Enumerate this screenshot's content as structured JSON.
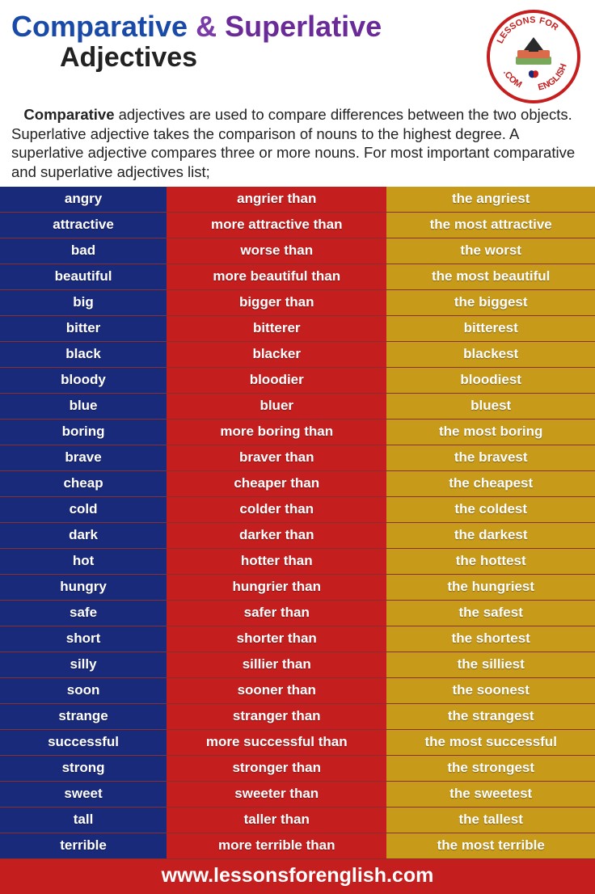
{
  "title": {
    "word1": "Comparative",
    "amp": "&",
    "word2": "Superlative",
    "word3": "Adjectives"
  },
  "logo": {
    "top_text": "LESSONS",
    "side_left": "FOR",
    "side_right": "ENGLISH",
    "bottom_text": ".COM"
  },
  "description": {
    "bold": "Comparative",
    "rest": " adjectives are used to compare differences between the two objects. Superlative adjective takes the comparison of nouns to the highest degree. A superlative adjective compares three or more nouns. For most important  comparative and superlative adjectives list;"
  },
  "columns": {
    "base_color": "#1a2a7a",
    "comp_color": "#c41e1e",
    "super_color": "#c79a1a",
    "text_color": "#ffffff",
    "row_border": "#8a2f2f"
  },
  "rows": [
    {
      "base": "angry",
      "comp": "angrier than",
      "super": "the angriest"
    },
    {
      "base": "attractive",
      "comp": "more attractive than",
      "super": "the most attractive"
    },
    {
      "base": "bad",
      "comp": "worse than",
      "super": "the worst"
    },
    {
      "base": "beautiful",
      "comp": "more beautiful than",
      "super": "the most beautiful"
    },
    {
      "base": "big",
      "comp": "bigger than",
      "super": "the biggest"
    },
    {
      "base": "bitter",
      "comp": "bitterer",
      "super": "bitterest"
    },
    {
      "base": "black",
      "comp": "blacker",
      "super": "blackest"
    },
    {
      "base": "bloody",
      "comp": "bloodier",
      "super": "bloodiest"
    },
    {
      "base": "blue",
      "comp": "bluer",
      "super": "bluest"
    },
    {
      "base": "boring",
      "comp": "more boring than",
      "super": "the most boring"
    },
    {
      "base": "brave",
      "comp": "braver than",
      "super": "the bravest"
    },
    {
      "base": "cheap",
      "comp": "cheaper than",
      "super": "the cheapest"
    },
    {
      "base": "cold",
      "comp": "colder than",
      "super": "the coldest"
    },
    {
      "base": "dark",
      "comp": "darker than",
      "super": "the darkest"
    },
    {
      "base": "hot",
      "comp": "hotter than",
      "super": "the hottest"
    },
    {
      "base": "hungry",
      "comp": "hungrier than",
      "super": "the hungriest"
    },
    {
      "base": "safe",
      "comp": "safer than",
      "super": "the safest"
    },
    {
      "base": "short",
      "comp": "shorter than",
      "super": "the shortest"
    },
    {
      "base": "silly",
      "comp": "sillier than",
      "super": "the silliest"
    },
    {
      "base": "soon",
      "comp": "sooner than",
      "super": "the soonest"
    },
    {
      "base": "strange",
      "comp": "stranger than",
      "super": "the strangest"
    },
    {
      "base": "successful",
      "comp": "more successful than",
      "super": "the most successful"
    },
    {
      "base": "strong",
      "comp": "stronger than",
      "super": "the strongest"
    },
    {
      "base": "sweet",
      "comp": "sweeter than",
      "super": "the sweetest"
    },
    {
      "base": "tall",
      "comp": "taller than",
      "super": "the tallest"
    },
    {
      "base": "terrible",
      "comp": "more terrible than",
      "super": "the most terrible"
    }
  ],
  "footer": "www.lessonsforenglish.com"
}
